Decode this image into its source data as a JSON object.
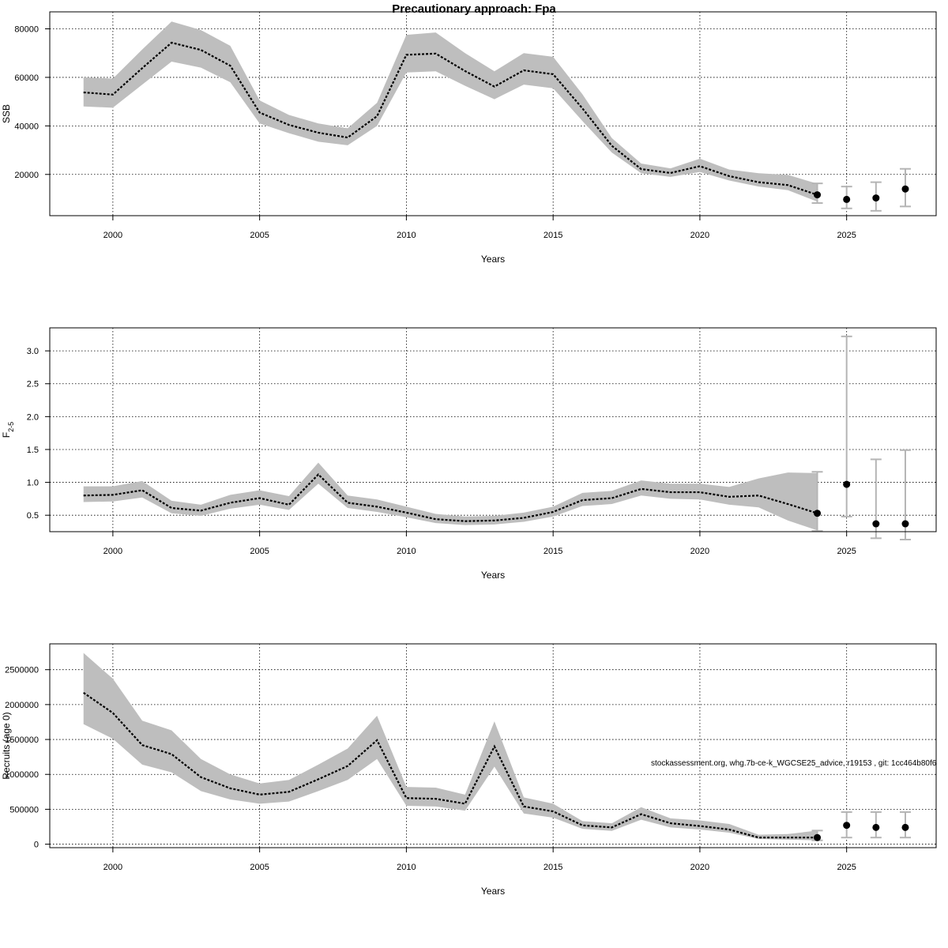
{
  "figure": {
    "title": "Precautionary approach: Fpa",
    "credit": "stockassessment.org, whg.7b-ce-k_WGCSE25_advice, r19153 , git: 1cc464b80f6"
  },
  "chart_data": [
    {
      "type": "line",
      "ylabel": "SSB",
      "xlabel": "Years",
      "xlim": [
        1999,
        2027
      ],
      "ylim": [
        3000,
        87000
      ],
      "x_ticks": [
        2000,
        2005,
        2010,
        2015,
        2020,
        2025
      ],
      "y_ticks": [
        20000,
        40000,
        60000,
        80000
      ],
      "y_tick_labels": [
        "20000",
        "40000",
        "60000",
        "80000"
      ],
      "grid": true,
      "years": [
        1999,
        2000,
        2001,
        2002,
        2003,
        2004,
        2005,
        2006,
        2007,
        2008,
        2009,
        2010,
        2011,
        2012,
        2013,
        2014,
        2015,
        2016,
        2017,
        2018,
        2019,
        2020,
        2021,
        2022,
        2023,
        2024
      ],
      "estimate": [
        53800,
        52900,
        63800,
        74300,
        71300,
        64800,
        45500,
        40400,
        37200,
        35200,
        44000,
        69300,
        69800,
        62600,
        56200,
        62900,
        61300,
        47200,
        31800,
        22200,
        20600,
        23400,
        19300,
        16800,
        15600,
        11600
      ],
      "lower": [
        48000,
        47500,
        57000,
        66500,
        64000,
        58000,
        41000,
        37000,
        33500,
        32000,
        40000,
        62000,
        62500,
        56500,
        51000,
        57000,
        55500,
        42000,
        29000,
        20500,
        19000,
        21000,
        17500,
        15000,
        13500,
        8800
      ],
      "upper": [
        60000,
        59500,
        71500,
        83000,
        79500,
        73000,
        50500,
        44500,
        41000,
        39000,
        49500,
        77500,
        78500,
        70000,
        62500,
        70000,
        68500,
        53000,
        35000,
        24500,
        22500,
        26500,
        22000,
        20500,
        19800,
        16200
      ],
      "projection": {
        "years": [
          2024,
          2025,
          2026,
          2027
        ],
        "values": [
          11600,
          9700,
          10300,
          14000
        ],
        "lower": [
          8200,
          6000,
          5000,
          6800
        ],
        "upper": [
          16300,
          15000,
          16800,
          22300
        ]
      }
    },
    {
      "type": "line",
      "ylabel": "F",
      "ylabel_subscript": "2-5",
      "xlabel": "Years",
      "xlim": [
        1999,
        2027
      ],
      "ylim": [
        0.25,
        3.35
      ],
      "x_ticks": [
        2000,
        2005,
        2010,
        2015,
        2020,
        2025
      ],
      "y_ticks": [
        0.5,
        1.0,
        1.5,
        2.0,
        2.5,
        3.0
      ],
      "y_tick_labels": [
        "0.5",
        "1.0",
        "1.5",
        "2.0",
        "2.5",
        "3.0"
      ],
      "grid": true,
      "years": [
        1999,
        2000,
        2001,
        2002,
        2003,
        2004,
        2005,
        2006,
        2007,
        2008,
        2009,
        2010,
        2011,
        2012,
        2013,
        2014,
        2015,
        2016,
        2017,
        2018,
        2019,
        2020,
        2021,
        2022,
        2023,
        2024
      ],
      "estimate": [
        0.8,
        0.81,
        0.88,
        0.61,
        0.57,
        0.69,
        0.76,
        0.66,
        1.12,
        0.69,
        0.63,
        0.54,
        0.44,
        0.41,
        0.42,
        0.46,
        0.55,
        0.73,
        0.76,
        0.9,
        0.85,
        0.85,
        0.78,
        0.8,
        0.67,
        0.53
      ],
      "lower": [
        0.7,
        0.71,
        0.77,
        0.53,
        0.49,
        0.6,
        0.66,
        0.58,
        0.98,
        0.61,
        0.55,
        0.47,
        0.38,
        0.35,
        0.36,
        0.4,
        0.48,
        0.64,
        0.67,
        0.8,
        0.75,
        0.74,
        0.66,
        0.62,
        0.42,
        0.27
      ],
      "upper": [
        0.94,
        0.94,
        1.02,
        0.72,
        0.66,
        0.81,
        0.88,
        0.79,
        1.3,
        0.8,
        0.74,
        0.63,
        0.52,
        0.48,
        0.49,
        0.54,
        0.63,
        0.84,
        0.87,
        1.03,
        0.98,
        0.98,
        0.93,
        1.06,
        1.15,
        1.14
      ],
      "projection": {
        "years": [
          2024,
          2025,
          2026,
          2027
        ],
        "values": [
          0.53,
          0.97,
          0.37,
          0.37
        ],
        "lower": [
          0.26,
          0.48,
          0.15,
          0.13
        ],
        "upper": [
          1.16,
          3.22,
          1.35,
          1.49
        ]
      }
    },
    {
      "type": "line",
      "ylabel": "Recruits (age 0)",
      "xlabel": "Years",
      "xlim": [
        1999,
        2027
      ],
      "ylim": [
        -50000,
        2870000
      ],
      "x_ticks": [
        2000,
        2005,
        2010,
        2015,
        2020,
        2025
      ],
      "y_ticks": [
        0,
        500000,
        1000000,
        1500000,
        2000000,
        2500000
      ],
      "y_tick_labels": [
        "0",
        "500000",
        "1000000",
        "1500000",
        "2000000",
        "2500000"
      ],
      "grid": true,
      "years": [
        1999,
        2000,
        2001,
        2002,
        2003,
        2004,
        2005,
        2006,
        2007,
        2008,
        2009,
        2010,
        2011,
        2012,
        2013,
        2014,
        2015,
        2016,
        2017,
        2018,
        2019,
        2020,
        2021,
        2022,
        2023,
        2024
      ],
      "estimate": [
        2170000,
        1880000,
        1420000,
        1290000,
        960000,
        800000,
        710000,
        750000,
        930000,
        1120000,
        1490000,
        660000,
        650000,
        580000,
        1400000,
        540000,
        470000,
        270000,
        240000,
        430000,
        300000,
        260000,
        210000,
        95000,
        95000,
        95000
      ],
      "lower": [
        1720000,
        1510000,
        1140000,
        1030000,
        760000,
        640000,
        580000,
        610000,
        760000,
        920000,
        1220000,
        550000,
        540000,
        480000,
        1110000,
        440000,
        380000,
        220000,
        190000,
        350000,
        240000,
        210000,
        165000,
        75000,
        65000,
        55000
      ],
      "upper": [
        2740000,
        2370000,
        1770000,
        1630000,
        1220000,
        1000000,
        870000,
        920000,
        1140000,
        1370000,
        1840000,
        820000,
        810000,
        710000,
        1760000,
        670000,
        580000,
        330000,
        300000,
        530000,
        370000,
        340000,
        290000,
        135000,
        145000,
        195000
      ],
      "projection": {
        "years": [
          2024,
          2025,
          2026,
          2027
        ],
        "values": [
          95000,
          270000,
          240000,
          240000
        ],
        "lower": [
          55000,
          95000,
          95000,
          95000
        ],
        "upper": [
          195000,
          460000,
          460000,
          460000
        ]
      }
    }
  ]
}
